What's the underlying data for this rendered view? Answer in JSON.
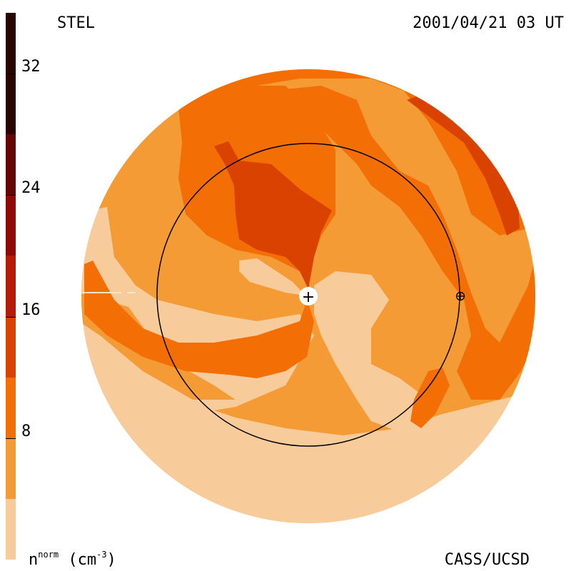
{
  "header": {
    "observatory": "STEL",
    "timestamp": "2001/04/21 03 UT"
  },
  "footer": {
    "quantity": "n",
    "quantity_sup_1": "norm",
    "unit_open": " (cm",
    "unit_sup": "-3",
    "unit_close": ")",
    "credit": "CASS/UCSD"
  },
  "colorbar": {
    "ticks": [
      "32",
      "24",
      "16",
      "8"
    ],
    "tick_values": [
      32,
      24,
      16,
      8
    ],
    "range": [
      0,
      36
    ],
    "levels": [
      {
        "from": 0,
        "to": 4,
        "color": "#f8cc9a"
      },
      {
        "from": 4,
        "to": 8,
        "color": "#f59b35"
      },
      {
        "from": 8,
        "to": 12,
        "color": "#f36f05"
      },
      {
        "from": 12,
        "to": 16,
        "color": "#d94200"
      },
      {
        "from": 16,
        "to": 20,
        "color": "#b71b08"
      },
      {
        "from": 20,
        "to": 24,
        "color": "#8f0a05"
      },
      {
        "from": 24,
        "to": 28,
        "color": "#640704"
      },
      {
        "from": 28,
        "to": 36,
        "color": "#2a0403"
      }
    ]
  },
  "map": {
    "center_symbol": "+",
    "earth_symbol": "⊕",
    "earth_orbit": "1 AU"
  }
}
